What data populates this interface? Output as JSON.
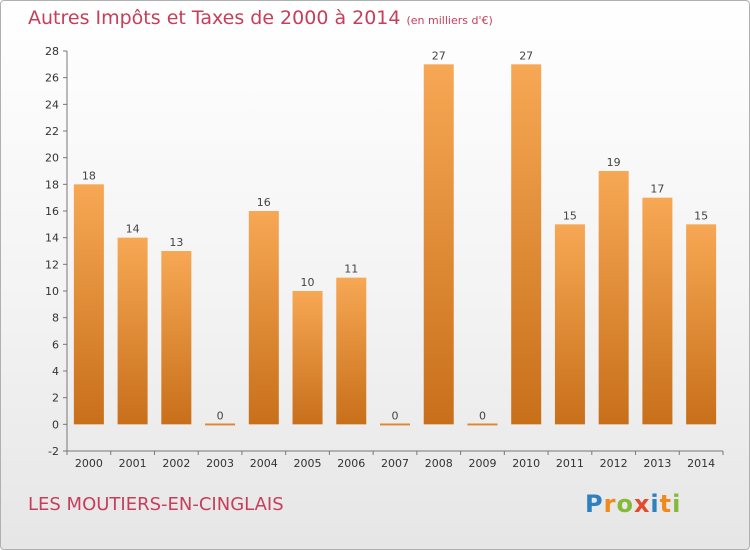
{
  "title": "Autres Impôts et Taxes de 2000 à 2014",
  "subtitle": "(en milliers d'€)",
  "place": "LES MOUTIERS-EN-CINGLAIS",
  "logo": {
    "p": "P",
    "r": "r",
    "o": "o",
    "x": "x",
    "i": "i",
    "t": "t",
    "i2": "i"
  },
  "colors": {
    "title": "#c63e5a",
    "bar_light": "#f7a854",
    "bar_dark": "#c86f1a",
    "axis": "#777777"
  },
  "chart_data": {
    "type": "bar",
    "title": "Autres Impôts et Taxes de 2000 à 2014",
    "subtitle": "(en milliers d'€)",
    "xlabel": "",
    "ylabel": "",
    "categories": [
      "2000",
      "2001",
      "2002",
      "2003",
      "2004",
      "2005",
      "2006",
      "2007",
      "2008",
      "2009",
      "2010",
      "2011",
      "2012",
      "2013",
      "2014"
    ],
    "values": [
      18,
      14,
      13,
      0,
      16,
      10,
      11,
      0,
      27,
      0,
      27,
      15,
      19,
      17,
      15
    ],
    "ylim": [
      -2,
      28
    ],
    "yticks": [
      -2,
      0,
      2,
      4,
      6,
      8,
      10,
      12,
      14,
      16,
      18,
      20,
      22,
      24,
      26,
      28
    ],
    "grid": false,
    "legend": "none"
  }
}
